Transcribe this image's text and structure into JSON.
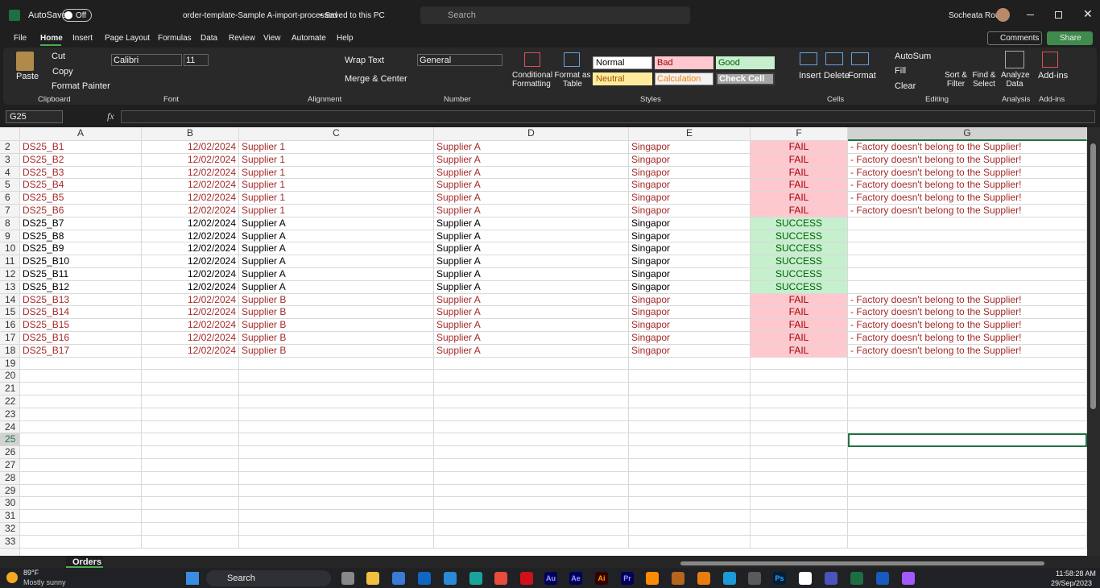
{
  "title_bar": {
    "autosave": "AutoSave",
    "toggle": "Off",
    "doc_title": "order-template-Sample A-import-processed",
    "saved": "• Saved to this PC",
    "search": "Search",
    "user": "Socheata Rou"
  },
  "tabs": [
    "File",
    "Home",
    "Insert",
    "Page Layout",
    "Formulas",
    "Data",
    "Review",
    "View",
    "Automate",
    "Help"
  ],
  "buttons": {
    "comments": "Comments",
    "share": "Share"
  },
  "ribbon": {
    "clipboard": {
      "paste": "Paste",
      "cut": "Cut",
      "copy": "Copy",
      "format_painter": "Format Painter",
      "label": "Clipboard"
    },
    "font": {
      "name": "Calibri",
      "size": "11",
      "label": "Font"
    },
    "alignment": {
      "wrap": "Wrap Text",
      "merge": "Merge & Center",
      "label": "Alignment"
    },
    "number": {
      "format": "General",
      "label": "Number"
    },
    "styles": {
      "conditional": "Conditional Formatting",
      "format_table": "Format as Table",
      "normal": "Normal",
      "bad": "Bad",
      "good": "Good",
      "neutral": "Neutral",
      "calculation": "Calculation",
      "check": "Check Cell",
      "label": "Styles"
    },
    "cells": {
      "insert": "Insert",
      "delete": "Delete",
      "format": "Format",
      "label": "Cells"
    },
    "editing": {
      "autosum": "AutoSum",
      "fill": "Fill",
      "clear": "Clear",
      "sort": "Sort & Filter",
      "find": "Find & Select",
      "label": "Editing"
    },
    "analysis": {
      "analyze": "Analyze Data",
      "label": "Analysis"
    },
    "addins": {
      "addins": "Add-ins",
      "label": "Add-ins"
    }
  },
  "formula_bar": {
    "name_box": "G25",
    "fx": "fx"
  },
  "columns": [
    "A",
    "B",
    "C",
    "D",
    "E",
    "F",
    "G"
  ],
  "row_numbers": [
    2,
    3,
    4,
    5,
    6,
    7,
    8,
    9,
    10,
    11,
    12,
    13,
    14,
    15,
    16,
    17,
    18,
    19,
    20,
    21,
    22,
    23,
    24,
    25,
    26,
    27,
    28,
    29,
    30,
    31,
    32,
    33
  ],
  "rows": [
    [
      "DS25_B1",
      "12/02/2024",
      "Supplier 1",
      "Supplier A",
      "Singapor",
      "FAIL",
      "- Factory doesn't belong to the Supplier!"
    ],
    [
      "DS25_B2",
      "12/02/2024",
      "Supplier 1",
      "Supplier A",
      "Singapor",
      "FAIL",
      "- Factory doesn't belong to the Supplier!"
    ],
    [
      "DS25_B3",
      "12/02/2024",
      "Supplier 1",
      "Supplier A",
      "Singapor",
      "FAIL",
      "- Factory doesn't belong to the Supplier!"
    ],
    [
      "DS25_B4",
      "12/02/2024",
      "Supplier 1",
      "Supplier A",
      "Singapor",
      "FAIL",
      "- Factory doesn't belong to the Supplier!"
    ],
    [
      "DS25_B5",
      "12/02/2024",
      "Supplier 1",
      "Supplier A",
      "Singapor",
      "FAIL",
      "- Factory doesn't belong to the Supplier!"
    ],
    [
      "DS25_B6",
      "12/02/2024",
      "Supplier 1",
      "Supplier A",
      "Singapor",
      "FAIL",
      "- Factory doesn't belong to the Supplier!"
    ],
    [
      "DS25_B7",
      "12/02/2024",
      "Supplier A",
      "Supplier A",
      "Singapor",
      "SUCCESS"
    ],
    [
      "DS25_B8",
      "12/02/2024",
      "Supplier A",
      "Supplier A",
      "Singapor",
      "SUCCESS"
    ],
    [
      "DS25_B9",
      "12/02/2024",
      "Supplier A",
      "Supplier A",
      "Singapor",
      "SUCCESS"
    ],
    [
      "DS25_B10",
      "12/02/2024",
      "Supplier A",
      "Supplier A",
      "Singapor",
      "SUCCESS"
    ],
    [
      "DS25_B11",
      "12/02/2024",
      "Supplier A",
      "Supplier A",
      "Singapor",
      "SUCCESS"
    ],
    [
      "DS25_B12",
      "12/02/2024",
      "Supplier A",
      "Supplier A",
      "Singapor",
      "SUCCESS"
    ],
    [
      "DS25_B13",
      "12/02/2024",
      "Supplier B",
      "Supplier A",
      "Singapor",
      "FAIL",
      "- Factory doesn't belong to the Supplier!"
    ],
    [
      "DS25_B14",
      "12/02/2024",
      "Supplier B",
      "Supplier A",
      "Singapor",
      "FAIL",
      "- Factory doesn't belong to the Supplier!"
    ],
    [
      "DS25_B15",
      "12/02/2024",
      "Supplier B",
      "Supplier A",
      "Singapor",
      "FAIL",
      "- Factory doesn't belong to the Supplier!"
    ],
    [
      "DS25_B16",
      "12/02/2024",
      "Supplier B",
      "Supplier A",
      "Singapor",
      "FAIL",
      "- Factory doesn't belong to the Supplier!"
    ],
    [
      "DS25_B17",
      "12/02/2024",
      "Supplier B",
      "Supplier A",
      "Singapor",
      "FAIL",
      "- Factory doesn't belong to the Supplier!"
    ]
  ],
  "sheet_tab": "Orders",
  "taskbar": {
    "temp": "89°F",
    "weather": "Mostly sunny",
    "search": "Search",
    "app_icons": [
      "Au",
      "Ae",
      "Ai",
      "Pr",
      "Ps"
    ],
    "time": "11:58:28 AM",
    "date": "29/Sep/2023"
  }
}
